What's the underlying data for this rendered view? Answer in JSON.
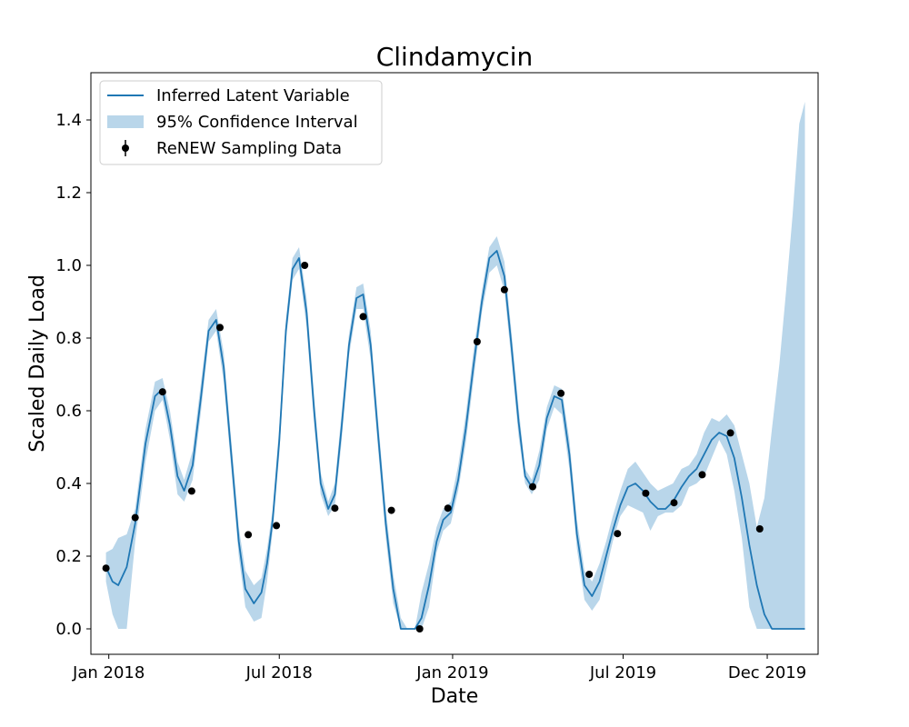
{
  "chart_data": {
    "type": "line",
    "title": "Clindamycin",
    "xlabel": "Date",
    "ylabel": "Scaled Daily Load",
    "xlim": [
      "2017-12-13",
      "2020-01-24"
    ],
    "ylim": [
      -0.07,
      1.53
    ],
    "x_ticks": [
      {
        "date": "2018-01-01",
        "label": "Jan 2018"
      },
      {
        "date": "2018-07-01",
        "label": "Jul 2018"
      },
      {
        "date": "2019-01-01",
        "label": "Jan 2019"
      },
      {
        "date": "2019-07-01",
        "label": "Jul 2019"
      },
      {
        "date": "2019-12-01",
        "label": "Dec 2019"
      }
    ],
    "y_ticks": [
      0.0,
      0.2,
      0.4,
      0.6,
      0.8,
      1.0,
      1.2,
      1.4
    ],
    "y_tick_labels": [
      "0.0",
      "0.2",
      "0.4",
      "0.6",
      "0.8",
      "1.0",
      "1.2",
      "1.4"
    ],
    "grid": false,
    "legend_position": "top-left",
    "colors": {
      "line": "#1f77b4",
      "band": "#b9d6ea",
      "points": "#000000"
    },
    "series": [
      {
        "name": "Inferred Latent Variable",
        "x": [
          "2017-12-29",
          "2018-01-05",
          "2018-01-11",
          "2018-01-20",
          "2018-01-29",
          "2018-02-09",
          "2018-02-19",
          "2018-02-27",
          "2018-03-07",
          "2018-03-15",
          "2018-03-22",
          "2018-03-31",
          "2018-04-09",
          "2018-04-17",
          "2018-04-25",
          "2018-05-03",
          "2018-05-11",
          "2018-05-19",
          "2018-05-26",
          "2018-06-04",
          "2018-06-12",
          "2018-06-18",
          "2018-06-24",
          "2018-07-01",
          "2018-07-08",
          "2018-07-15",
          "2018-07-22",
          "2018-07-30",
          "2018-08-07",
          "2018-08-14",
          "2018-08-22",
          "2018-08-29",
          "2018-09-05",
          "2018-09-13",
          "2018-09-21",
          "2018-09-28",
          "2018-10-06",
          "2018-10-14",
          "2018-10-22",
          "2018-10-30",
          "2018-11-07",
          "2018-11-14",
          "2018-11-22",
          "2018-11-29",
          "2018-12-07",
          "2018-12-15",
          "2018-12-22",
          "2018-12-30",
          "2019-01-07",
          "2019-01-15",
          "2019-01-23",
          "2019-02-01",
          "2019-02-09",
          "2019-02-17",
          "2019-02-25",
          "2019-03-04",
          "2019-03-12",
          "2019-03-19",
          "2019-03-26",
          "2019-04-03",
          "2019-04-11",
          "2019-04-19",
          "2019-04-27",
          "2019-05-05",
          "2019-05-13",
          "2019-05-21",
          "2019-05-29",
          "2019-06-06",
          "2019-06-13",
          "2019-06-20",
          "2019-06-28",
          "2019-07-06",
          "2019-07-14",
          "2019-07-22",
          "2019-07-30",
          "2019-08-07",
          "2019-08-15",
          "2019-08-23",
          "2019-09-01",
          "2019-09-09",
          "2019-09-17",
          "2019-09-25",
          "2019-10-03",
          "2019-10-11",
          "2019-10-19",
          "2019-10-27",
          "2019-11-04",
          "2019-11-12",
          "2019-11-20",
          "2019-11-28",
          "2019-12-06",
          "2019-12-14",
          "2019-12-21",
          "2019-12-28",
          "2020-01-04",
          "2020-01-10"
        ],
        "y": [
          0.17,
          0.13,
          0.12,
          0.17,
          0.29,
          0.51,
          0.64,
          0.66,
          0.56,
          0.42,
          0.38,
          0.45,
          0.64,
          0.82,
          0.85,
          0.72,
          0.48,
          0.24,
          0.11,
          0.07,
          0.1,
          0.18,
          0.3,
          0.52,
          0.82,
          0.99,
          1.02,
          0.87,
          0.6,
          0.4,
          0.33,
          0.37,
          0.55,
          0.78,
          0.91,
          0.92,
          0.78,
          0.53,
          0.29,
          0.11,
          0.0,
          0.0,
          0.0,
          0.03,
          0.12,
          0.24,
          0.3,
          0.32,
          0.41,
          0.55,
          0.72,
          0.9,
          1.02,
          1.04,
          0.97,
          0.79,
          0.57,
          0.42,
          0.39,
          0.45,
          0.58,
          0.64,
          0.63,
          0.48,
          0.26,
          0.12,
          0.09,
          0.13,
          0.2,
          0.27,
          0.34,
          0.39,
          0.4,
          0.38,
          0.35,
          0.33,
          0.33,
          0.35,
          0.39,
          0.42,
          0.44,
          0.48,
          0.52,
          0.54,
          0.53,
          0.47,
          0.36,
          0.23,
          0.12,
          0.04,
          0.0,
          0.0,
          0.0,
          0.0,
          0.0,
          0.0
        ],
        "lower": [
          0.13,
          0.04,
          0.0,
          0.0,
          0.24,
          0.46,
          0.6,
          0.63,
          0.52,
          0.37,
          0.35,
          0.41,
          0.6,
          0.79,
          0.82,
          0.68,
          0.44,
          0.2,
          0.06,
          0.02,
          0.03,
          0.13,
          0.27,
          0.48,
          0.79,
          0.96,
          0.99,
          0.83,
          0.56,
          0.37,
          0.31,
          0.34,
          0.51,
          0.75,
          0.88,
          0.88,
          0.74,
          0.49,
          0.25,
          0.07,
          0.0,
          0.0,
          0.0,
          0.0,
          0.06,
          0.21,
          0.27,
          0.29,
          0.38,
          0.51,
          0.68,
          0.87,
          0.98,
          1.0,
          0.93,
          0.75,
          0.53,
          0.4,
          0.37,
          0.41,
          0.55,
          0.61,
          0.59,
          0.44,
          0.22,
          0.08,
          0.05,
          0.08,
          0.16,
          0.24,
          0.31,
          0.34,
          0.33,
          0.32,
          0.27,
          0.31,
          0.32,
          0.32,
          0.34,
          0.39,
          0.4,
          0.42,
          0.47,
          0.52,
          0.48,
          0.38,
          0.25,
          0.06,
          0.0,
          0.0,
          0.0,
          0.0,
          0.0,
          0.0,
          0.0,
          0.0
        ],
        "upper": [
          0.21,
          0.22,
          0.25,
          0.26,
          0.33,
          0.55,
          0.68,
          0.69,
          0.6,
          0.46,
          0.41,
          0.49,
          0.68,
          0.85,
          0.88,
          0.76,
          0.52,
          0.28,
          0.16,
          0.12,
          0.14,
          0.22,
          0.33,
          0.56,
          0.85,
          1.02,
          1.05,
          0.91,
          0.64,
          0.43,
          0.35,
          0.4,
          0.59,
          0.81,
          0.94,
          0.95,
          0.82,
          0.57,
          0.33,
          0.15,
          0.03,
          0.0,
          0.0,
          0.1,
          0.18,
          0.28,
          0.33,
          0.35,
          0.45,
          0.59,
          0.76,
          0.93,
          1.05,
          1.08,
          1.01,
          0.83,
          0.61,
          0.44,
          0.41,
          0.49,
          0.61,
          0.67,
          0.66,
          0.52,
          0.3,
          0.16,
          0.13,
          0.18,
          0.24,
          0.31,
          0.38,
          0.44,
          0.46,
          0.43,
          0.4,
          0.38,
          0.39,
          0.4,
          0.44,
          0.45,
          0.48,
          0.54,
          0.58,
          0.57,
          0.59,
          0.56,
          0.48,
          0.4,
          0.28,
          0.36,
          0.55,
          0.73,
          0.93,
          1.14,
          1.39,
          1.45
        ]
      }
    ],
    "legend": [
      {
        "label": "Inferred Latent Variable",
        "kind": "line"
      },
      {
        "label": "95% Confidence Interval",
        "kind": "band"
      },
      {
        "label": "ReNEW Sampling Data",
        "kind": "errorbar-point"
      }
    ],
    "points": {
      "name": "ReNEW Sampling Data",
      "x": [
        "2017-12-29",
        "2018-01-29",
        "2018-02-27",
        "2018-03-30",
        "2018-04-29",
        "2018-05-29",
        "2018-06-28",
        "2018-07-28",
        "2018-08-29",
        "2018-09-28",
        "2018-10-28",
        "2018-11-27",
        "2018-12-27",
        "2019-01-27",
        "2019-02-25",
        "2019-03-27",
        "2019-04-26",
        "2019-05-26",
        "2019-06-25",
        "2019-07-25",
        "2019-08-24",
        "2019-09-23",
        "2019-10-23",
        "2019-11-23"
      ],
      "y": [
        0.167,
        0.306,
        0.652,
        0.379,
        0.829,
        0.259,
        0.284,
        1.0,
        0.332,
        0.859,
        0.326,
        0.0,
        0.332,
        0.79,
        0.933,
        0.391,
        0.648,
        0.15,
        0.262,
        0.373,
        0.347,
        0.424,
        0.539,
        0.275
      ]
    }
  }
}
